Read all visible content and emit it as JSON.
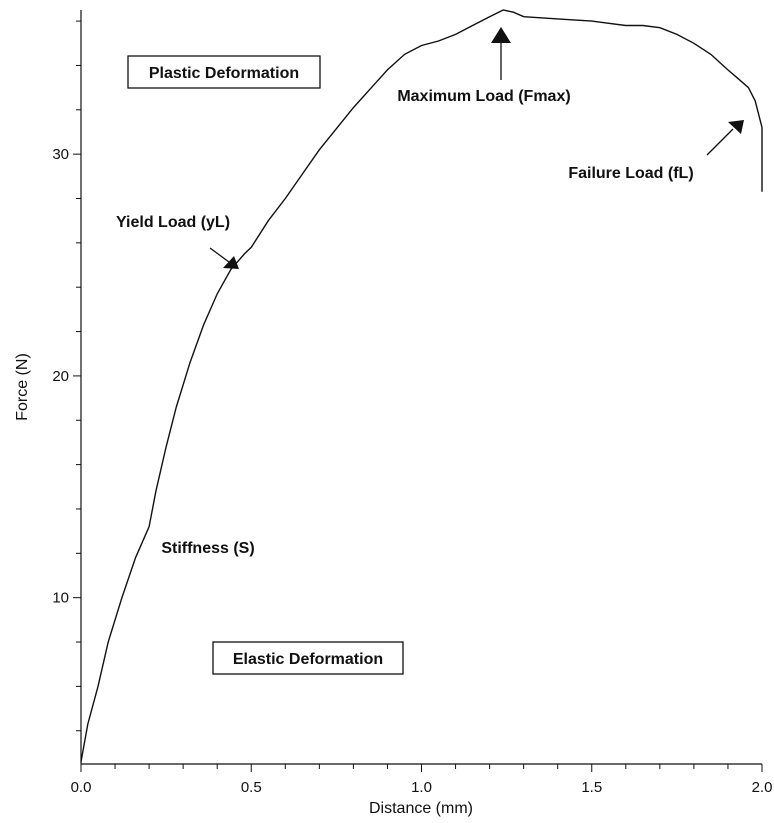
{
  "chart_data": {
    "type": "line",
    "title": "",
    "xlabel": "Distance (mm)",
    "ylabel": "Force (N)",
    "xlim": [
      0,
      2.0
    ],
    "ylim": [
      2.5,
      36.5
    ],
    "x_ticks": [
      0.0,
      0.5,
      1.0,
      1.5,
      2.0
    ],
    "x_tick_labels": [
      "0.0",
      "0.5",
      "1.0",
      "1.5",
      "2.0"
    ],
    "y_ticks": [
      10,
      20,
      30
    ],
    "y_tick_labels": [
      "10",
      "20",
      "30"
    ],
    "grid": false,
    "legend": "none",
    "series": [
      {
        "x": [
          0.0,
          0.02,
          0.05,
          0.08,
          0.12,
          0.16,
          0.2,
          0.22,
          0.25,
          0.28,
          0.32,
          0.36,
          0.4,
          0.44,
          0.48,
          0.5,
          0.55,
          0.6,
          0.65,
          0.7,
          0.8,
          0.9,
          0.95,
          1.0,
          1.05,
          1.1,
          1.15,
          1.2,
          1.24,
          1.27,
          1.3,
          1.4,
          1.5,
          1.55,
          1.6,
          1.65,
          1.7,
          1.75,
          1.8,
          1.85,
          1.9,
          1.93,
          1.96,
          1.98,
          1.99,
          2.0,
          2.0
        ],
        "y": [
          2.6,
          4.3,
          6.0,
          8.0,
          10.0,
          11.8,
          13.2,
          14.8,
          16.8,
          18.6,
          20.6,
          22.3,
          23.7,
          24.8,
          25.5,
          25.8,
          27.0,
          28.0,
          29.1,
          30.2,
          32.1,
          33.8,
          34.5,
          34.9,
          35.1,
          35.4,
          35.8,
          36.2,
          36.5,
          36.4,
          36.2,
          36.1,
          36.0,
          35.9,
          35.8,
          35.8,
          35.7,
          35.4,
          35.0,
          34.5,
          33.8,
          33.4,
          33.0,
          32.4,
          31.8,
          31.2,
          28.3
        ]
      }
    ],
    "annotations": [
      {
        "text": "Plastic Deformation",
        "boxed": true
      },
      {
        "text": "Maximum Load (Fmax)",
        "boxed": false
      },
      {
        "text": "Failure Load (fL)",
        "boxed": false
      },
      {
        "text": "Yield Load (yL)",
        "boxed": false
      },
      {
        "text": "Stiffness (S)",
        "boxed": false
      },
      {
        "text": "Elastic Deformation",
        "boxed": true
      }
    ]
  }
}
